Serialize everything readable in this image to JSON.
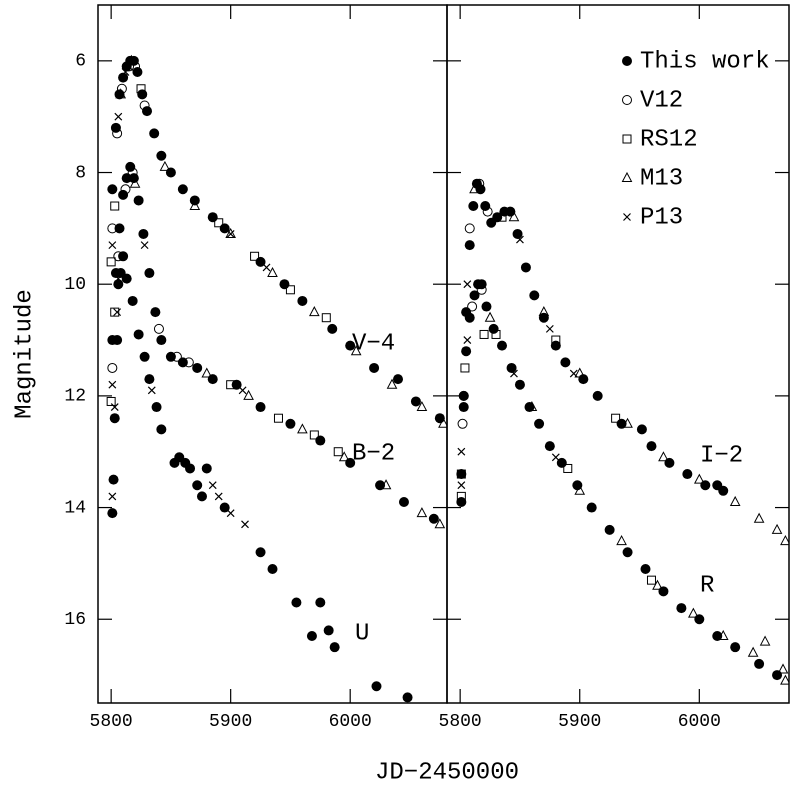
{
  "chart_data": [
    {
      "type": "scatter",
      "xlabel": "JD−2450000",
      "ylabel": "Magnitude",
      "xlim": [
        5789,
        6081
      ],
      "xticks": [
        5800,
        5900,
        6000
      ],
      "ylim": [
        5,
        17.5
      ],
      "yticks": [
        6,
        8,
        10,
        12,
        14,
        16
      ],
      "y_inverted": true,
      "annotations": [
        "V−4",
        "B−2",
        "U"
      ],
      "series": [
        {
          "marker": "filled-circle",
          "x": [
            5801,
            5804,
            5807,
            5810,
            5813,
            5816,
            5819,
            5822,
            5826,
            5830,
            5836,
            5842,
            5850,
            5860,
            5870,
            5885,
            5895,
            5925,
            5945,
            5960,
            5985,
            6000,
            6020,
            6040,
            6055,
            6075,
            5801,
            5804,
            5807,
            5810,
            5813,
            5816,
            5819,
            5823,
            5827,
            5832,
            5837,
            5842,
            5850,
            5860,
            5872,
            5885,
            5905,
            5925,
            5950,
            5975,
            6000,
            6025,
            6045,
            6070,
            5801,
            5802,
            5803,
            5805,
            5806,
            5808,
            5810,
            5813,
            5818,
            5823,
            5828,
            5832,
            5838,
            5842,
            5853,
            5857,
            5862,
            5866,
            5872,
            5876,
            5880,
            5895,
            5925,
            5935,
            5955,
            5968,
            5975,
            5982,
            5987,
            6022,
            6048
          ],
          "y": [
            8.3,
            7.2,
            6.6,
            6.3,
            6.1,
            6.0,
            6.0,
            6.2,
            6.6,
            6.9,
            7.3,
            7.7,
            8.0,
            8.3,
            8.5,
            8.8,
            9.0,
            9.6,
            10.0,
            10.3,
            10.8,
            11.1,
            11.5,
            11.7,
            12.1,
            12.4,
            11.0,
            9.8,
            9.0,
            8.4,
            8.1,
            7.9,
            8.1,
            8.5,
            9.1,
            9.8,
            10.5,
            11.0,
            11.3,
            11.4,
            11.5,
            11.7,
            11.8,
            12.2,
            12.5,
            12.8,
            13.2,
            13.6,
            13.9,
            14.2,
            14.1,
            13.5,
            12.4,
            11.0,
            10.0,
            9.8,
            9.5,
            9.9,
            10.3,
            10.9,
            11.3,
            11.7,
            12.2,
            12.6,
            13.2,
            13.1,
            13.2,
            13.3,
            13.6,
            13.8,
            13.3,
            14.0,
            14.8,
            15.1,
            15.7,
            16.3,
            15.7,
            16.2,
            16.5,
            17.2,
            17.4
          ]
        },
        {
          "marker": "open-circle",
          "x": [
            5801,
            5805,
            5809,
            5815,
            5820,
            5828,
            5801,
            5806,
            5812,
            5818,
            5840,
            5855,
            5865
          ],
          "y": [
            9.0,
            7.3,
            6.5,
            6.1,
            6.1,
            6.8,
            11.5,
            9.5,
            8.3,
            8.0,
            10.8,
            11.3,
            11.4
          ]
        },
        {
          "marker": "square",
          "x": [
            5800,
            5803,
            5825,
            5890,
            5920,
            5950,
            5980,
            5800,
            5803,
            5900,
            5940,
            5970,
            5990
          ],
          "y": [
            9.6,
            8.6,
            6.5,
            8.9,
            9.5,
            10.1,
            10.6,
            12.1,
            10.5,
            11.8,
            12.4,
            12.7,
            13.0
          ]
        },
        {
          "marker": "triangle",
          "x": [
            5808,
            5817,
            5845,
            5870,
            5900,
            5935,
            5970,
            6005,
            6035,
            6060,
            6078,
            5820,
            5880,
            5915,
            5960,
            5995,
            6030,
            6060,
            6075
          ],
          "y": [
            6.6,
            6.0,
            7.9,
            8.6,
            9.1,
            9.8,
            10.5,
            11.2,
            11.8,
            12.2,
            12.5,
            8.2,
            11.6,
            12.0,
            12.6,
            13.1,
            13.6,
            14.1,
            14.3
          ]
        },
        {
          "marker": "cross",
          "x": [
            5801,
            5806,
            5812,
            5900,
            5930,
            5801,
            5806,
            5828,
            5910,
            5801,
            5803,
            5805,
            5834,
            5885,
            5890,
            5900,
            5912
          ],
          "y": [
            9.3,
            7.0,
            6.2,
            9.1,
            9.7,
            11.8,
            9.9,
            9.3,
            11.9,
            13.8,
            12.2,
            10.5,
            11.9,
            13.6,
            13.8,
            14.1,
            14.3
          ]
        }
      ]
    },
    {
      "type": "scatter",
      "xlim": [
        5789,
        6075
      ],
      "xticks": [
        5800,
        5900,
        6000
      ],
      "ylim": [
        5,
        17.5
      ],
      "yticks": [
        6,
        8,
        10,
        12,
        14,
        16
      ],
      "y_inverted": true,
      "annotations": [
        "I−2",
        "R"
      ],
      "series": [
        {
          "name": "This work",
          "marker": "filled-circle",
          "x": [
            5801,
            5803,
            5805,
            5808,
            5811,
            5814,
            5817,
            5821,
            5826,
            5831,
            5837,
            5842,
            5848,
            5855,
            5862,
            5870,
            5880,
            5888,
            5903,
            5915,
            5935,
            5952,
            5960,
            5975,
            5990,
            6005,
            6015,
            6020,
            5801,
            5803,
            5805,
            5808,
            5812,
            5815,
            5818,
            5822,
            5828,
            5835,
            5843,
            5850,
            5858,
            5866,
            5875,
            5885,
            5898,
            5910,
            5925,
            5940,
            5955,
            5970,
            5985,
            6000,
            6015,
            6030,
            6050,
            6065
          ],
          "y": [
            13.9,
            12.0,
            10.5,
            9.3,
            8.6,
            8.2,
            8.3,
            8.6,
            8.9,
            8.8,
            8.7,
            8.7,
            9.1,
            9.7,
            10.2,
            10.6,
            11.1,
            11.4,
            11.7,
            12.0,
            12.5,
            12.6,
            12.9,
            13.2,
            13.4,
            13.6,
            13.6,
            13.7,
            13.4,
            12.2,
            11.2,
            10.6,
            10.2,
            10.0,
            10.0,
            10.4,
            10.8,
            11.1,
            11.5,
            11.8,
            12.2,
            12.5,
            12.9,
            13.2,
            13.6,
            14.0,
            14.4,
            14.8,
            15.1,
            15.5,
            15.8,
            16.0,
            16.3,
            16.5,
            16.8,
            17.0
          ]
        },
        {
          "name": "V12",
          "marker": "open-circle",
          "x": [
            5802,
            5808,
            5816,
            5823,
            5803,
            5810,
            5818
          ],
          "y": [
            12.5,
            9.0,
            8.2,
            8.7,
            12.0,
            10.4,
            10.1
          ]
        },
        {
          "name": "RS12",
          "marker": "square",
          "x": [
            5801,
            5804,
            5835,
            5880,
            5930,
            5801,
            5820,
            5830,
            5890,
            5960
          ],
          "y": [
            13.4,
            11.5,
            8.8,
            11.0,
            12.4,
            13.8,
            10.9,
            10.9,
            13.3,
            15.3
          ]
        },
        {
          "name": "M13",
          "marker": "triangle",
          "x": [
            5812,
            5845,
            5870,
            5900,
            5940,
            5970,
            6000,
            6030,
            6050,
            6065,
            6072,
            5825,
            5860,
            5900,
            5935,
            5965,
            5995,
            6020,
            6045,
            6055,
            6070,
            6072
          ],
          "y": [
            8.3,
            8.8,
            10.5,
            11.6,
            12.5,
            13.1,
            13.5,
            13.9,
            14.2,
            14.4,
            14.6,
            10.6,
            12.2,
            13.7,
            14.6,
            15.4,
            15.9,
            16.3,
            16.6,
            16.4,
            16.9,
            17.1
          ]
        },
        {
          "name": "P13",
          "marker": "cross",
          "x": [
            5801,
            5806,
            5850,
            5875,
            5895,
            5801,
            5806,
            5845,
            5880
          ],
          "y": [
            13.0,
            10.0,
            9.2,
            10.8,
            11.6,
            13.6,
            11.0,
            11.6,
            13.1
          ]
        }
      ]
    }
  ]
}
